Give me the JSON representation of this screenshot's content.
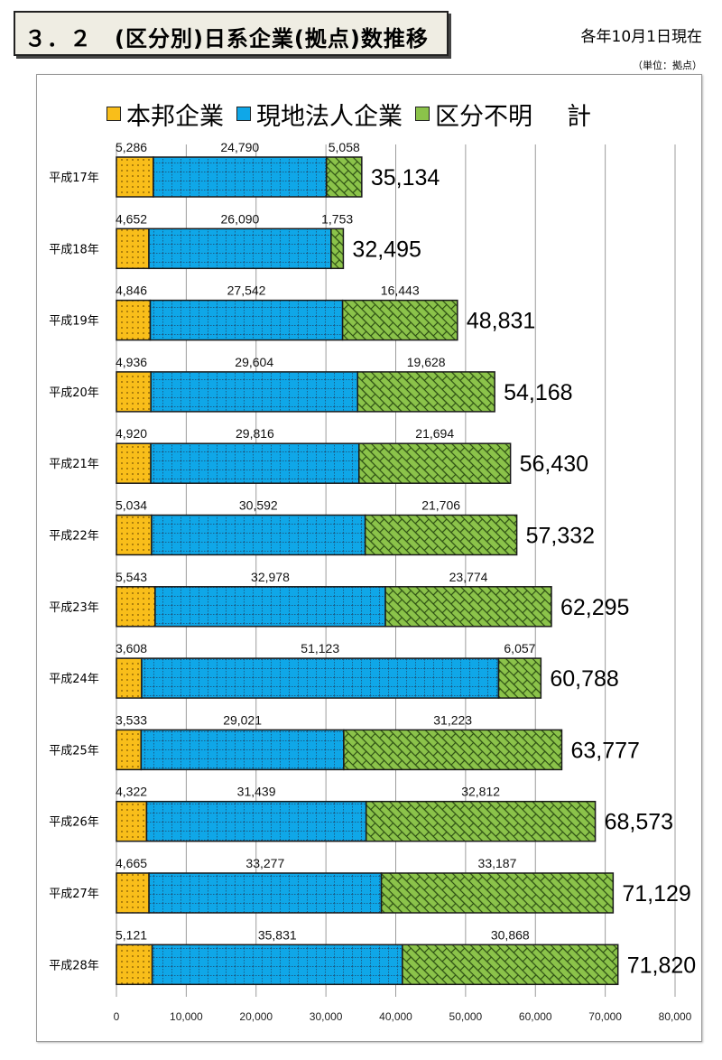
{
  "header": {
    "title": "３．２　(区分別)日系企業(拠点)数推移",
    "as_of": "各年10月1日現在",
    "unit": "（単位：拠点）"
  },
  "chart_data": {
    "type": "bar",
    "orientation": "horizontal",
    "stacked": true,
    "title": "(区分別)日系企業(拠点)数推移",
    "xlabel": "",
    "ylabel": "",
    "xlim": [
      0,
      80000
    ],
    "x_ticks": [
      0,
      10000,
      20000,
      30000,
      40000,
      50000,
      60000,
      70000,
      80000
    ],
    "x_tick_labels": [
      "0",
      "10,000",
      "20,000",
      "30,000",
      "40,000",
      "50,000",
      "60,000",
      "70,000",
      "80,000"
    ],
    "grid": true,
    "legend_position": "top",
    "categories": [
      "平成17年",
      "平成18年",
      "平成19年",
      "平成20年",
      "平成21年",
      "平成22年",
      "平成23年",
      "平成24年",
      "平成25年",
      "平成26年",
      "平成27年",
      "平成28年"
    ],
    "series": [
      {
        "name": "本邦企業",
        "color": "#f9be1a",
        "pattern": "dots",
        "values": [
          5286,
          4652,
          4846,
          4936,
          4920,
          5034,
          5543,
          3608,
          3533,
          4322,
          4665,
          5121
        ],
        "labels": [
          "5,286",
          "4,652",
          "4,846",
          "4,936",
          "4,920",
          "5,034",
          "5,543",
          "3,608",
          "3,533",
          "4,322",
          "4,665",
          "5,121"
        ]
      },
      {
        "name": "現地法人企業",
        "color": "#0fa7e8",
        "pattern": "grid",
        "values": [
          24790,
          26090,
          27542,
          29604,
          29816,
          30592,
          32978,
          51123,
          29021,
          31439,
          33277,
          35831
        ],
        "labels": [
          "24,790",
          "26,090",
          "27,542",
          "29,604",
          "29,816",
          "30,592",
          "32,978",
          "51,123",
          "29,021",
          "31,439",
          "33,277",
          "35,831"
        ]
      },
      {
        "name": "区分不明",
        "color": "#8bc34a",
        "pattern": "lattice",
        "values": [
          5058,
          1753,
          16443,
          19628,
          21694,
          21706,
          23774,
          6057,
          31223,
          32812,
          33187,
          30868
        ],
        "labels": [
          "5,058",
          "1,753",
          "16,443",
          "19,628",
          "21,694",
          "21,706",
          "23,774",
          "6,057",
          "31,223",
          "32,812",
          "33,187",
          "30,868"
        ]
      }
    ],
    "totals_name": "計",
    "totals": [
      35134,
      32495,
      48831,
      54168,
      56430,
      57332,
      62295,
      60788,
      63777,
      68573,
      71129,
      71820
    ],
    "total_labels": [
      "35,134",
      "32,495",
      "48,831",
      "54,168",
      "56,430",
      "57,332",
      "62,295",
      "60,788",
      "63,777",
      "68,573",
      "71,129",
      "71,820"
    ]
  }
}
